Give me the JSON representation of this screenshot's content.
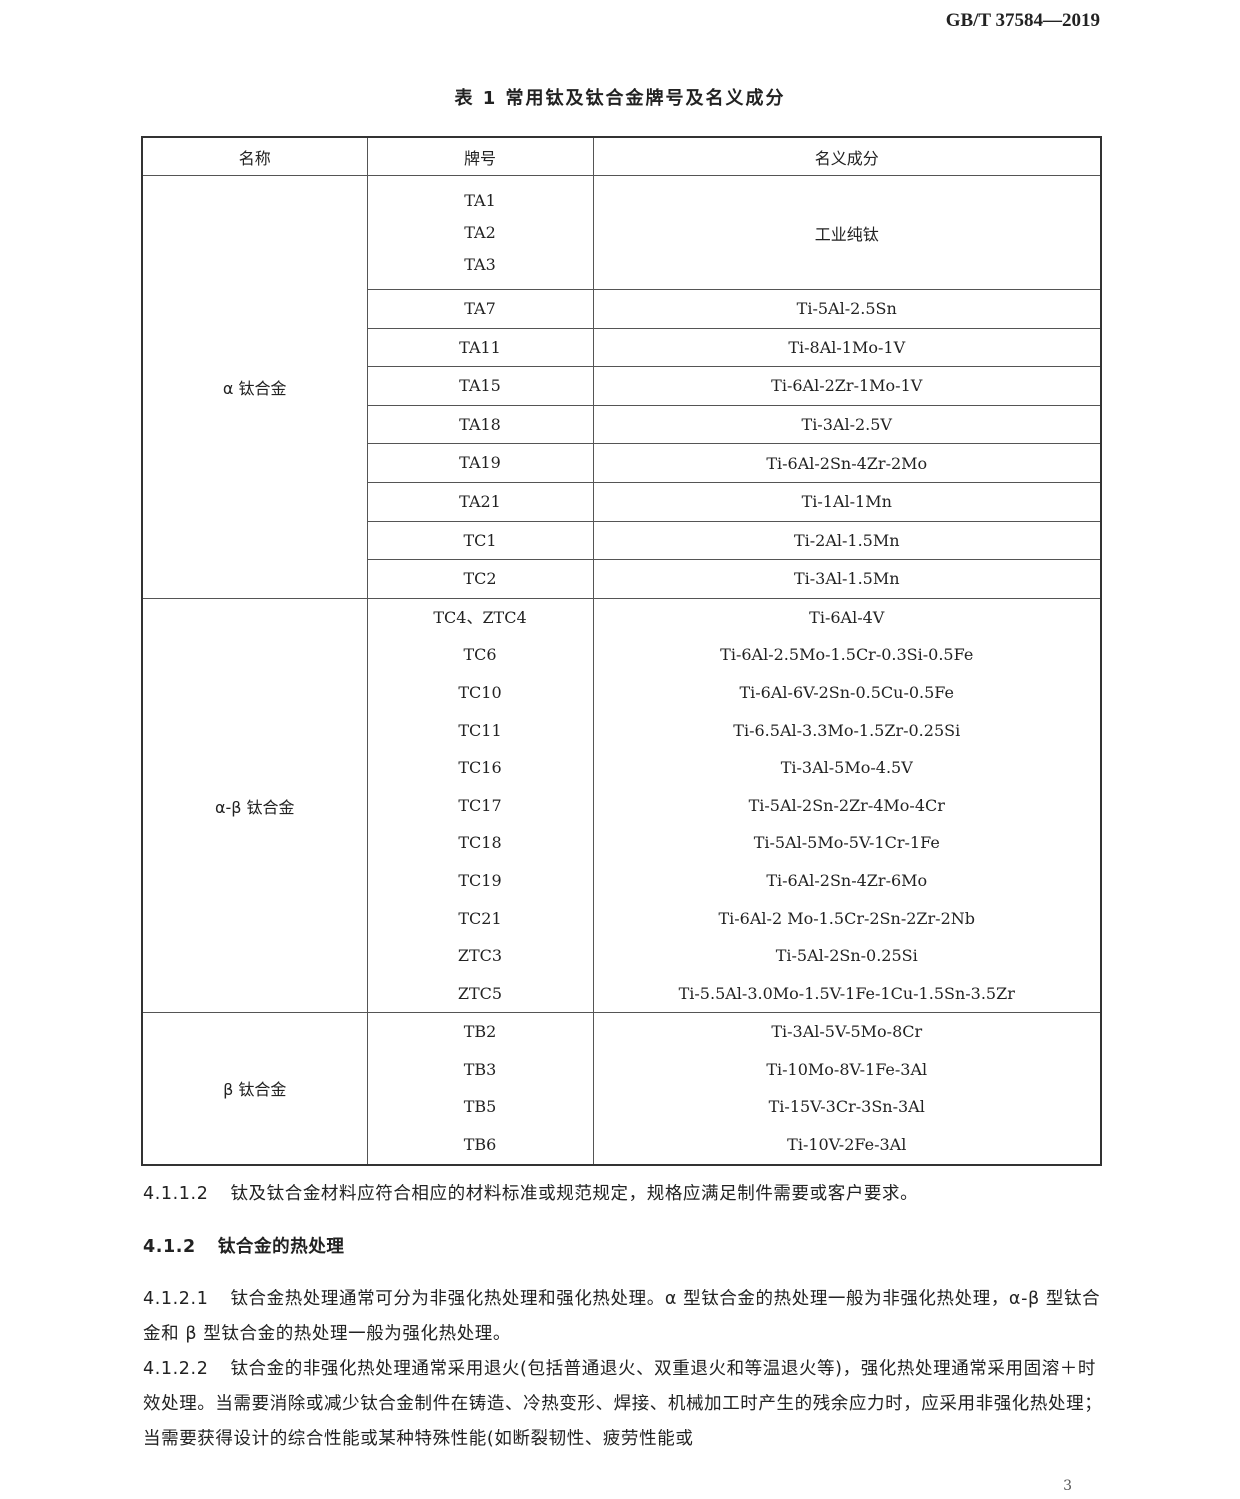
{
  "header": {
    "standard_number": "GB/T 37584—2019"
  },
  "table": {
    "caption": "表 1   常用钛及钛合金牌号及名义成分",
    "columns": [
      "名称",
      "牌号",
      "名义成分"
    ],
    "groups": [
      {
        "name": "α 钛合金",
        "rows": [
          {
            "grades": [
              "TA1",
              "TA2",
              "TA3"
            ],
            "composition": "工业纯钛"
          },
          {
            "grades": [
              "TA7"
            ],
            "composition": "Ti-5Al-2.5Sn"
          },
          {
            "grades": [
              "TA11"
            ],
            "composition": "Ti-8Al-1Mo-1V"
          },
          {
            "grades": [
              "TA15"
            ],
            "composition": "Ti-6Al-2Zr-1Mo-1V"
          },
          {
            "grades": [
              "TA18"
            ],
            "composition": "Ti-3Al-2.5V"
          },
          {
            "grades": [
              "TA19"
            ],
            "composition": "Ti-6Al-2Sn-4Zr-2Mo"
          },
          {
            "grades": [
              "TA21"
            ],
            "composition": "Ti-1Al-1Mn"
          },
          {
            "grades": [
              "TC1"
            ],
            "composition": "Ti-2Al-1.5Mn"
          },
          {
            "grades": [
              "TC2"
            ],
            "composition": "Ti-3Al-1.5Mn"
          }
        ]
      },
      {
        "name": "α-β 钛合金",
        "grades": [
          "TC4、ZTC4",
          "TC6",
          "TC10",
          "TC11",
          "TC16",
          "TC17",
          "TC18",
          "TC19",
          "TC21",
          "ZTC3",
          "ZTC5"
        ],
        "compositions": [
          "Ti-6Al-4V",
          "Ti-6Al-2.5Mo-1.5Cr-0.3Si-0.5Fe",
          "Ti-6Al-6V-2Sn-0.5Cu-0.5Fe",
          "Ti-6.5Al-3.3Mo-1.5Zr-0.25Si",
          "Ti-3Al-5Mo-4.5V",
          "Ti-5Al-2Sn-2Zr-4Mo-4Cr",
          "Ti-5Al-5Mo-5V-1Cr-1Fe",
          "Ti-6Al-2Sn-4Zr-6Mo",
          "Ti-6Al-2 Mo-1.5Cr-2Sn-2Zr-2Nb",
          "Ti-5Al-2Sn-0.25Si",
          "Ti-5.5Al-3.0Mo-1.5V-1Fe-1Cu-1.5Sn-3.5Zr"
        ]
      },
      {
        "name": "β 钛合金",
        "grades": [
          "TB2",
          "TB3",
          "TB5",
          "TB6"
        ],
        "compositions": [
          "Ti-3Al-5V-5Mo-8Cr",
          "Ti-10Mo-8V-1Fe-3Al",
          "Ti-15V-3Cr-3Sn-3Al",
          "Ti-10V-2Fe-3Al"
        ]
      }
    ]
  },
  "sections": [
    {
      "number": "4.1.1.2",
      "text": "钛及钛合金材料应符合相应的材料标准或规范规定，规格应满足制件需要或客户要求。"
    },
    {
      "number": "4.1.2",
      "text": "钛合金的热处理",
      "heading": true
    },
    {
      "number": "4.1.2.1",
      "text": "钛合金热处理通常可分为非强化热处理和强化热处理。α 型钛合金的热处理一般为非强化热处理，α-β 型钛合金和 β 型钛合金的热处理一般为强化热处理。"
    },
    {
      "number": "4.1.2.2",
      "text": "钛合金的非强化热处理通常采用退火(包括普通退火、双重退火和等温退火等)，强化热处理通常采用固溶＋时效处理。当需要消除或减少钛合金制件在铸造、冷热变形、焊接、机械加工时产生的残余应力时，应采用非强化热处理；当需要获得设计的综合性能或某种特殊性能(如断裂韧性、疲劳性能或"
    }
  ],
  "footer": {
    "page_number": "3"
  }
}
